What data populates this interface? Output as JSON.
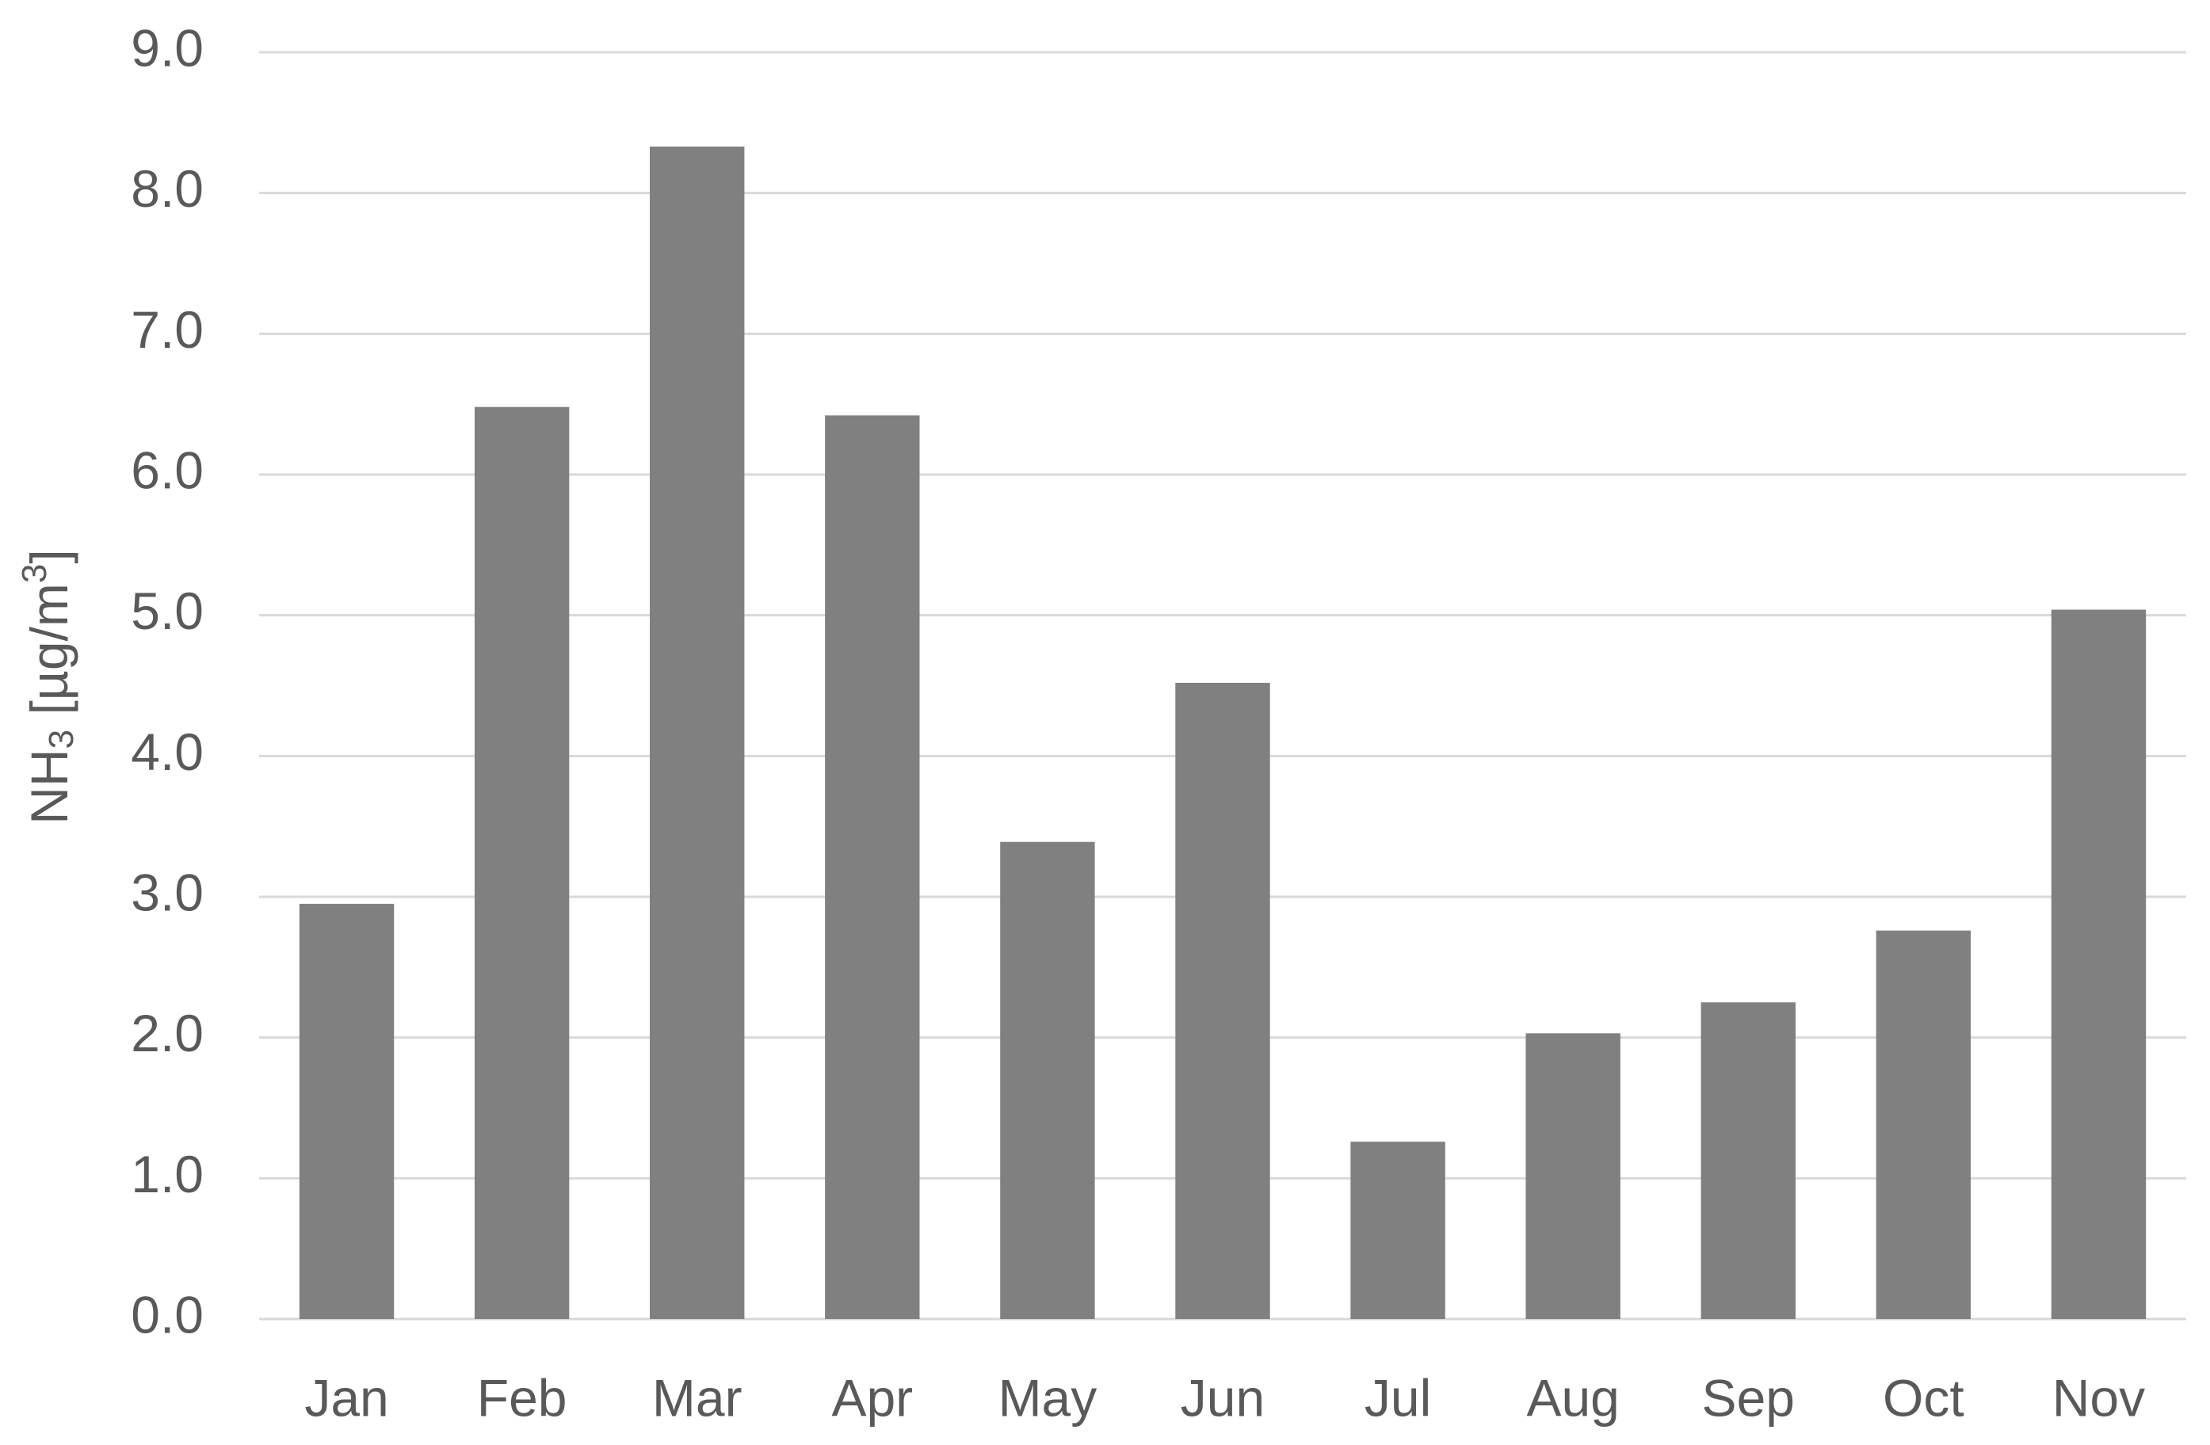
{
  "chart_data": {
    "type": "bar",
    "ylabel": [
      "NH",
      "3",
      " [µg/m",
      "3",
      "]"
    ],
    "categories": [
      "Jan",
      "Feb",
      "Mar",
      "Apr",
      "May",
      "Jun",
      "Jul",
      "Aug",
      "Sep",
      "Oct",
      "Nov"
    ],
    "values": [
      2.95,
      6.48,
      8.33,
      6.42,
      3.39,
      4.52,
      1.26,
      2.03,
      2.25,
      2.76,
      5.04
    ],
    "color": "#808080",
    "ylim": [
      0,
      9
    ],
    "yticks": [
      {
        "value": 0,
        "label": "0.0"
      },
      {
        "value": 1,
        "label": "1.0"
      },
      {
        "value": 2,
        "label": "2.0"
      },
      {
        "value": 3,
        "label": "3.0"
      },
      {
        "value": 4,
        "label": "4.0"
      },
      {
        "value": 5,
        "label": "5.0"
      },
      {
        "value": 6,
        "label": "6.0"
      },
      {
        "value": 7,
        "label": "7.0"
      },
      {
        "value": 8,
        "label": "8.0"
      },
      {
        "value": 9,
        "label": "9.0"
      }
    ],
    "grid": true
  }
}
